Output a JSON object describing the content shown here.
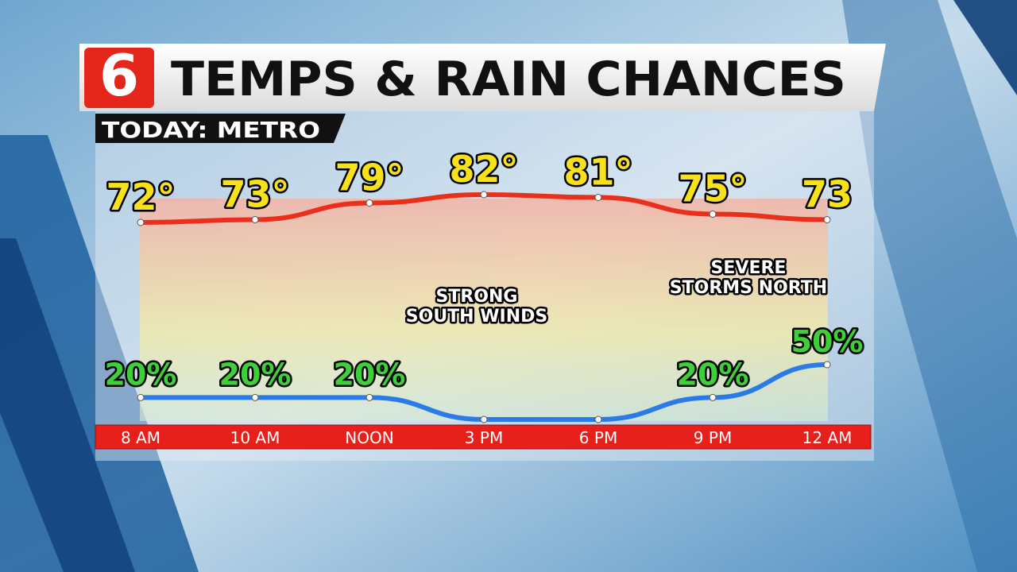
{
  "chart_data": {
    "type": "line",
    "title": "TEMPS & RAIN CHANCES",
    "subtitle": "TODAY: METRO",
    "logo": "6",
    "categories": [
      "8 AM",
      "10 AM",
      "NOON",
      "3 PM",
      "6 PM",
      "9 PM",
      "12 AM"
    ],
    "series": [
      {
        "name": "Temperature",
        "color": "#e8301c",
        "label_color": "#f7e11b",
        "values": [
          72,
          73,
          79,
          82,
          81,
          75,
          73
        ],
        "value_labels": [
          "72°",
          "73°",
          "79°",
          "82°",
          "81°",
          "75°",
          "73"
        ]
      },
      {
        "name": "Rain Chance",
        "color": "#2a7ae8",
        "label_color": "#3fcf3a",
        "values": [
          20,
          20,
          20,
          0,
          0,
          20,
          50
        ],
        "value_labels": [
          "20%",
          "20%",
          "20%",
          null,
          null,
          "20%",
          "50%"
        ]
      }
    ],
    "annotations": [
      {
        "lines": [
          "STRONG",
          "SOUTH WINDS"
        ],
        "color": "#2b3ff0"
      },
      {
        "lines": [
          "SEVERE",
          "STORMS NORTH"
        ],
        "color": "#e8201c"
      }
    ]
  }
}
